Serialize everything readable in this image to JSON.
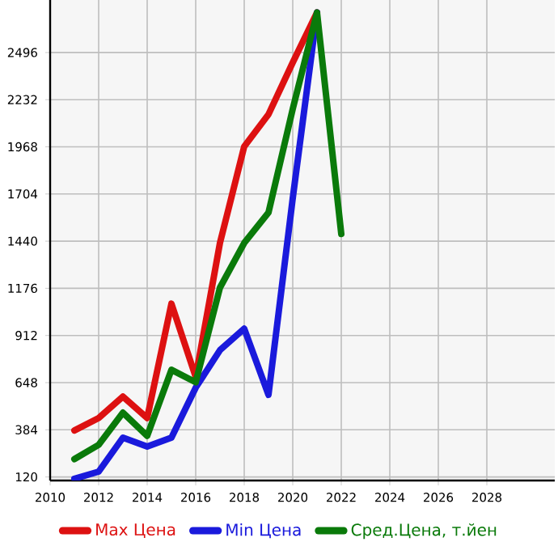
{
  "chart_data": {
    "type": "line",
    "x": [
      2011,
      2012,
      2013,
      2014,
      2015,
      2016,
      2017,
      2018,
      2019,
      2020,
      2021,
      2022
    ],
    "series": [
      {
        "name": "Max Цена",
        "color": "#dd1111",
        "values": [
          380,
          450,
          570,
          450,
          1090,
          680,
          1430,
          1970,
          2150,
          2440,
          2720,
          null
        ]
      },
      {
        "name": "Min Цена",
        "color": "#1a1adc",
        "values": [
          110,
          150,
          340,
          290,
          340,
          620,
          830,
          950,
          580,
          1680,
          2720,
          null
        ]
      },
      {
        "name": "Сред.Цена, т.йен",
        "color": "#0a7a0a",
        "values": [
          220,
          300,
          480,
          350,
          720,
          650,
          1180,
          1430,
          1600,
          2180,
          2720,
          1480
        ]
      }
    ],
    "xlim": [
      2010,
      2030.8
    ],
    "xticks": [
      2010,
      2012,
      2014,
      2016,
      2018,
      2020,
      2022,
      2024,
      2026,
      2028
    ],
    "ylim": [
      100,
      2790
    ],
    "yticks": [
      120,
      384,
      648,
      912,
      1176,
      1440,
      1704,
      1968,
      2232,
      2496
    ],
    "grid": true,
    "legend": "bottom",
    "line_style": "solid"
  }
}
